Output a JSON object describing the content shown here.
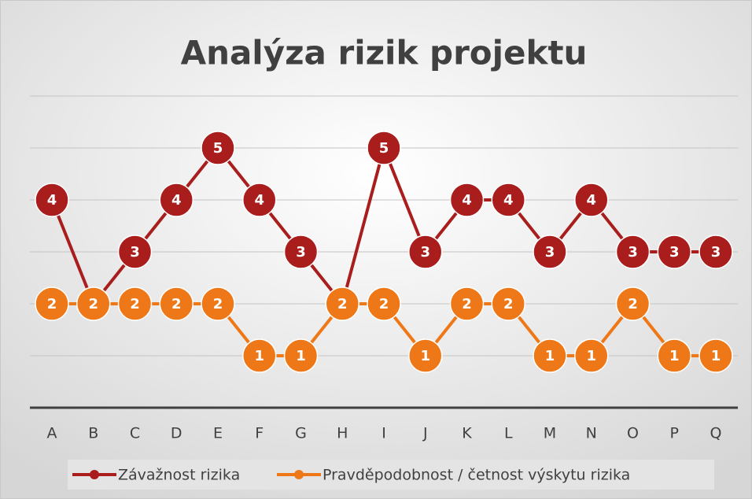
{
  "chart_data": {
    "type": "line",
    "title": "Analýza rizik projektu",
    "categories": [
      "A",
      "B",
      "C",
      "D",
      "E",
      "F",
      "G",
      "H",
      "I",
      "J",
      "K",
      "L",
      "M",
      "N",
      "O",
      "P",
      "Q"
    ],
    "series": [
      {
        "name": "Závažnost rizika",
        "color": "#a91d1d",
        "values": [
          4,
          2,
          3,
          4,
          5,
          4,
          3,
          2,
          5,
          3,
          4,
          4,
          3,
          4,
          3,
          3,
          3
        ]
      },
      {
        "name": "Pravděpodobnost / četnost výskytu rizika",
        "color": "#ee7817",
        "values": [
          2,
          2,
          2,
          2,
          2,
          1,
          1,
          2,
          2,
          1,
          2,
          2,
          1,
          1,
          2,
          1,
          1
        ]
      }
    ],
    "ylim": [
      0,
      6
    ],
    "yticks": [
      0,
      1,
      2,
      3,
      4,
      5,
      6
    ],
    "grid": true,
    "legend": "bottom"
  }
}
